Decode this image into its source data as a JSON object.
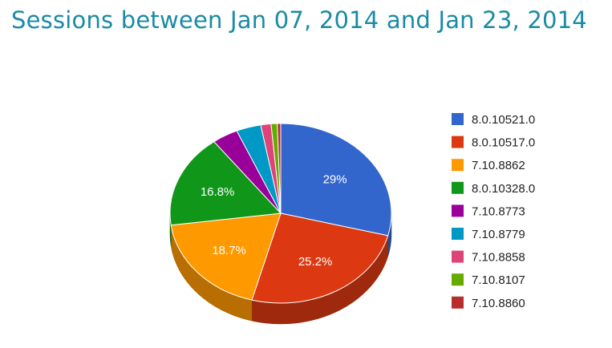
{
  "title": "Sessions between Jan 07, 2014 and Jan 23, 2014",
  "chart_data": {
    "type": "pie",
    "title": "Sessions between Jan 07, 2014 and Jan 23, 2014",
    "legend_position": "right",
    "three_d": true,
    "slices": [
      {
        "label": "8.0.10521.0",
        "value": 29.0,
        "display": "29%",
        "color": "#3366cc"
      },
      {
        "label": "8.0.10517.0",
        "value": 25.2,
        "display": "25.2%",
        "color": "#dc3912"
      },
      {
        "label": "7.10.8862",
        "value": 18.7,
        "display": "18.7%",
        "color": "#ff9900"
      },
      {
        "label": "8.0.10328.0",
        "value": 16.8,
        "display": "16.8%",
        "color": "#109618"
      },
      {
        "label": "7.10.8773",
        "value": 3.8,
        "display": "",
        "color": "#990099"
      },
      {
        "label": "7.10.8779",
        "value": 3.6,
        "display": "",
        "color": "#0099c6"
      },
      {
        "label": "7.10.8858",
        "value": 1.5,
        "display": "",
        "color": "#dd4477"
      },
      {
        "label": "7.10.8107",
        "value": 0.9,
        "display": "",
        "color": "#66aa00"
      },
      {
        "label": "7.10.8860",
        "value": 0.5,
        "display": "",
        "color": "#b82e2e"
      }
    ]
  }
}
